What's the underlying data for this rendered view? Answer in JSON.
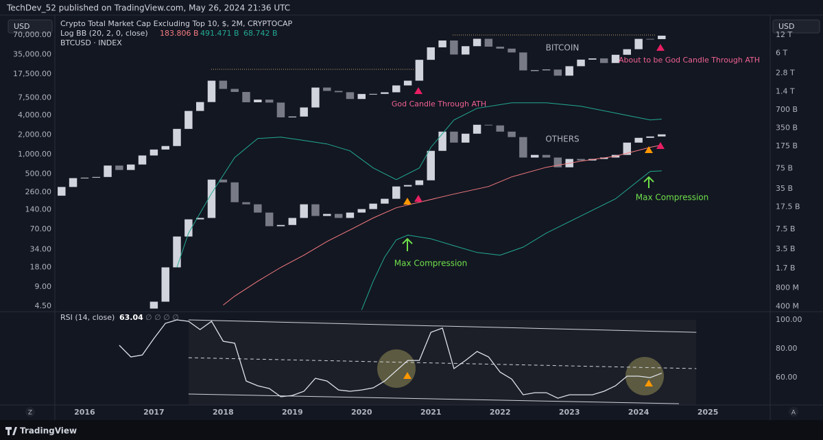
{
  "header": {
    "text": "TechDev_52 published on TradingView.com, May 26, 2024 21:36 UTC"
  },
  "controls": {
    "currency_left": "USD",
    "currency_right": "USD",
    "z_button": "Z",
    "a_button": "A"
  },
  "footer": {
    "brand": "TradingView"
  },
  "chart_data": [
    {
      "type": "candlestick",
      "log_scale": true,
      "grid": false,
      "xlim": [
        2015.57,
        2025.9
      ],
      "ylim": [
        3.9,
        123000
      ],
      "yticks": [
        {
          "value": 70000,
          "label": "70,000.00"
        },
        {
          "value": 35000,
          "label": "35,000.00"
        },
        {
          "value": 17500,
          "label": "17,500.00"
        },
        {
          "value": 7500,
          "label": "7,500.00"
        },
        {
          "value": 4000,
          "label": "4,000.00"
        },
        {
          "value": 2000,
          "label": "2,000.00"
        },
        {
          "value": 1000,
          "label": "1,000.00"
        },
        {
          "value": 500,
          "label": "500.00"
        },
        {
          "value": 260,
          "label": "260.00"
        },
        {
          "value": 140,
          "label": "140.00"
        },
        {
          "value": 70,
          "label": "70.00"
        },
        {
          "value": 34,
          "label": "34.00"
        },
        {
          "value": 18,
          "label": "18.00"
        },
        {
          "value": 9,
          "label": "9.00"
        },
        {
          "value": 4.5,
          "label": "4.50"
        }
      ],
      "y2lim": [
        345000000,
        21800000000000
      ],
      "y2ticks": [
        {
          "value": 12000000000000,
          "label": "12 T"
        },
        {
          "value": 6000000000000,
          "label": "6 T"
        },
        {
          "value": 2800000000000,
          "label": "2.8 T"
        },
        {
          "value": 1400000000000,
          "label": "1.4 T"
        },
        {
          "value": 700000000000,
          "label": "700 B"
        },
        {
          "value": 350000000000,
          "label": "350 B"
        },
        {
          "value": 175000000000,
          "label": "175 B"
        },
        {
          "value": 75000000000,
          "label": "75 B"
        },
        {
          "value": 35000000000,
          "label": "35 B"
        },
        {
          "value": 17500000000,
          "label": "17.5 B"
        },
        {
          "value": 7500000000,
          "label": "7.5 B"
        },
        {
          "value": 3500000000,
          "label": "3.5 B"
        },
        {
          "value": 1700000000,
          "label": "1.7 B"
        },
        {
          "value": 800000000,
          "label": "800 M"
        },
        {
          "value": 400000000,
          "label": "400 M"
        }
      ],
      "series": [
        {
          "name": "BTCUSD · INDEX",
          "axis": "y",
          "up_color": "#d1d4dc",
          "down_color": "#787b86",
          "first_open": 230,
          "x": [
            2015.667,
            2015.833,
            2016,
            2016.167,
            2016.333,
            2016.5,
            2016.667,
            2016.833,
            2017,
            2017.167,
            2017.333,
            2017.5,
            2017.667,
            2017.833,
            2018,
            2018.167,
            2018.333,
            2018.5,
            2018.667,
            2018.833,
            2019,
            2019.167,
            2019.333,
            2019.5,
            2019.667,
            2019.833,
            2020,
            2020.167,
            2020.333,
            2020.5,
            2020.667,
            2020.833,
            2021,
            2021.167,
            2021.333,
            2021.5,
            2021.667,
            2021.833,
            2022,
            2022.167,
            2022.333,
            2022.5,
            2022.667,
            2022.833,
            2023,
            2023.167,
            2023.333,
            2023.5,
            2023.667,
            2023.833,
            2024,
            2024.167,
            2024.333
          ],
          "values": [
            314,
            430,
            437,
            448,
            673,
            575,
            698,
            963,
            1190,
            1348,
            2480,
            4700,
            6450,
            13800,
            10300,
            9240,
            6400,
            7030,
            6330,
            3740,
            3850,
            5320,
            10800,
            9590,
            9150,
            7190,
            8600,
            8620,
            9130,
            11650,
            13800,
            29000,
            45200,
            57700,
            35000,
            47100,
            61300,
            46300,
            43200,
            37700,
            19900,
            20000,
            20500,
            16500,
            23100,
            29200,
            30500,
            25900,
            34700,
            42300,
            61100,
            60600,
            68500
          ]
        },
        {
          "name": "Crypto Total Market Cap Excluding Top 10, $, 2M, CRYPTOCAP",
          "axis": "y2",
          "up_color": "#d1d4dc",
          "down_color": "#787b86",
          "first_open": 368000000,
          "x": [
            2017,
            2017.167,
            2017.333,
            2017.5,
            2017.667,
            2017.833,
            2018,
            2018.167,
            2018.333,
            2018.5,
            2018.667,
            2018.833,
            2019,
            2019.167,
            2019.333,
            2019.5,
            2019.667,
            2019.833,
            2020,
            2020.167,
            2020.333,
            2020.5,
            2020.667,
            2020.833,
            2021,
            2021.167,
            2021.333,
            2021.5,
            2021.667,
            2021.833,
            2022,
            2022.167,
            2022.333,
            2022.5,
            2022.667,
            2022.833,
            2023,
            2023.167,
            2023.333,
            2023.5,
            2023.667,
            2023.833,
            2024,
            2024.167,
            2024.333
          ],
          "values": [
            478000000,
            1760000000,
            5680000000,
            10900000000,
            11500000000,
            49300000000,
            44400000000,
            20900000000,
            19300000000,
            14100000000,
            8400000000,
            8800000000,
            11500000000,
            19300000000,
            12400000000,
            13400000000,
            11500000000,
            14100000000,
            16100000000,
            19800000000,
            23800000000,
            38000000000,
            40100000000,
            48000000000,
            147000000000,
            305000000000,
            201000000000,
            282000000000,
            396000000000,
            386000000000,
            305000000000,
            248000000000,
            114000000000,
            126000000000,
            114000000000,
            78700000000,
            108000000000,
            102000000000,
            108000000000,
            114000000000,
            126000000000,
            201000000000,
            241000000000,
            254000000000,
            275000000000
          ]
        }
      ],
      "bands": {
        "name": "Log BB (20, 2, 0, close)",
        "axis": "y2",
        "lines": [
          {
            "color": "#f77c80",
            "last_label": "183.806 B",
            "x": [
              2018,
              2018.167,
              2018.5,
              2018.833,
              2019.167,
              2019.5,
              2019.833,
              2020.167,
              2020.5,
              2020.833,
              2021.333,
              2021.833,
              2022.167,
              2022.667,
              2023.167,
              2023.667,
              2024.167,
              2024.333
            ],
            "values": [
              420000000,
              590000000,
              1040000000,
              1760000000,
              2800000000,
              4700000000,
              7300000000,
              11500000000,
              16900000000,
              20900000000,
              28500000000,
              38000000000,
              54700000000,
              78700000000,
              99500000000,
              120000000000,
              168000000000,
              183806000000
            ]
          },
          {
            "color": "#22ab94",
            "last_label": "491.471 B",
            "x": [
              2017.333,
              2017.5,
              2017.833,
              2018.167,
              2018.5,
              2018.833,
              2019.167,
              2019.5,
              2019.833,
              2020.167,
              2020.5,
              2020.833,
              2021,
              2021.333,
              2021.667,
              2022.167,
              2022.667,
              2023.167,
              2023.667,
              2024.167,
              2024.333
            ],
            "values": [
              1760000000,
              6470000000,
              29300000000,
              114000000000,
              235000000000,
              248000000000,
              218000000000,
              191000000000,
              147000000000,
              76800000000,
              49300000000,
              76800000000,
              168000000000,
              475000000000,
              740000000000,
              911000000000,
              911000000000,
              800000000000,
              617000000000,
              475000000000,
              491471000000
            ]
          },
          {
            "color": "#22ab94",
            "last_label": "68.742 B",
            "x": [
              2020,
              2020.167,
              2020.333,
              2020.5,
              2020.667,
              2021,
              2021.333,
              2021.667,
              2022,
              2022.333,
              2022.667,
              2023.167,
              2023.667,
              2024.167,
              2024.333
            ],
            "values": [
              350000000,
              1040000000,
              2600000000,
              5000000000,
              6000000000,
              5200000000,
              4000000000,
              3100000000,
              2800000000,
              3800000000,
              6470000000,
              12400000000,
              23800000000,
              67400000000,
              68742000000
            ]
          }
        ]
      },
      "annotations": [
        "BITCOIN",
        "OTHERS",
        "God Candle Through ATH",
        "About to be God Candle Through ATH",
        "Max Compression",
        "Max Compression"
      ]
    },
    {
      "type": "line",
      "title": "RSI (14, close)",
      "na_marks": "∅ ∅ ∅ ∅",
      "color": "#e0e3eb",
      "log_scale": false,
      "grid": false,
      "xlim": [
        2015.57,
        2025.9
      ],
      "xticks": [
        2016,
        2017,
        2018,
        2019,
        2020,
        2021,
        2022,
        2023,
        2024,
        2025
      ],
      "ylim": [
        41,
        103.8
      ],
      "yticks": [
        {
          "value": 100,
          "label": "100.00"
        },
        {
          "value": 80,
          "label": "80.00"
        },
        {
          "value": 60,
          "label": "60.00"
        }
      ],
      "x": [
        2016.5,
        2016.667,
        2016.833,
        2017,
        2017.167,
        2017.333,
        2017.5,
        2017.667,
        2017.833,
        2018,
        2018.167,
        2018.333,
        2018.5,
        2018.667,
        2018.833,
        2019,
        2019.167,
        2019.333,
        2019.5,
        2019.667,
        2019.833,
        2020,
        2020.167,
        2020.333,
        2020.5,
        2020.667,
        2020.833,
        2021,
        2021.167,
        2021.333,
        2021.5,
        2021.667,
        2021.833,
        2022,
        2022.167,
        2022.333,
        2022.5,
        2022.667,
        2022.833,
        2023,
        2023.167,
        2023.333,
        2023.5,
        2023.667,
        2023.833,
        2024,
        2024.167,
        2024.333
      ],
      "values": [
        82.4,
        74.3,
        75.7,
        87.1,
        97.6,
        100,
        99,
        93.3,
        99,
        85.2,
        83.8,
        57.6,
        54.3,
        52.4,
        46.7,
        47.6,
        50.5,
        59.5,
        57.6,
        51.4,
        50.5,
        51.4,
        52.9,
        57.6,
        64.8,
        71.9,
        71.9,
        91.4,
        94.3,
        66.2,
        71.9,
        78.1,
        74.3,
        63.8,
        59,
        48.1,
        49.5,
        49.5,
        45.7,
        48.1,
        48.1,
        48.1,
        50.5,
        54.3,
        61,
        61,
        60,
        63.04
      ],
      "trendlines": [
        {
          "x": [
            2017.5,
            2024.833
          ],
          "values": [
            100,
            91.4
          ],
          "dashed": false
        },
        {
          "x": [
            2017.5,
            2024.833
          ],
          "values": [
            73.8,
            66.2
          ],
          "dashed": true
        },
        {
          "x": [
            2017.5,
            2024.583
          ],
          "values": [
            48.6,
            41.9
          ],
          "dashed": false
        }
      ]
    }
  ]
}
